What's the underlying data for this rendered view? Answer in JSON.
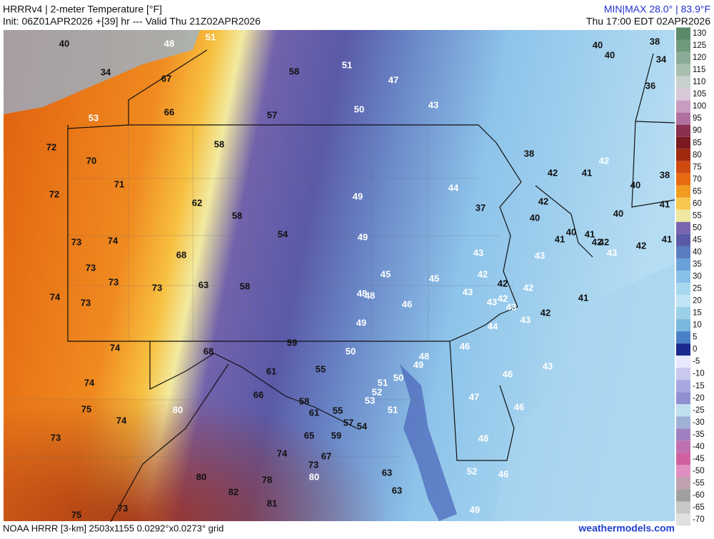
{
  "header": {
    "title": "HRRRv4 | 2-meter Temperature [°F]",
    "init": "Init: 06Z01APR2026 +[39] hr --- Valid Thu 21Z02APR2026",
    "minmax": "MIN|MAX 28.0° | 83.9°F",
    "local_time": "Thu 17:00 EDT 02APR2026"
  },
  "footer": {
    "grid": "NOAA HRRR [3-km] 2503x1155 0.0292°x0.0273° grid",
    "site": "weathermodels.com"
  },
  "colorbar": {
    "ticks": [
      130,
      125,
      120,
      115,
      110,
      105,
      100,
      95,
      90,
      85,
      80,
      75,
      70,
      65,
      60,
      55,
      50,
      45,
      40,
      35,
      30,
      25,
      20,
      15,
      10,
      5,
      0,
      -5,
      -10,
      -15,
      -20,
      -25,
      -30,
      -35,
      -40,
      -45,
      -50,
      -55,
      -60,
      -65,
      -70
    ],
    "colors": [
      "#5a8a6a",
      "#6f9a7c",
      "#8aab95",
      "#a8bfb0",
      "#c8d0cc",
      "#d8c8d8",
      "#c89cc0",
      "#b070a0",
      "#8a3050",
      "#7a1a20",
      "#a02a10",
      "#d04a10",
      "#e86a10",
      "#f39a20",
      "#f7c850",
      "#eee8a0",
      "#7a66b0",
      "#5a5aa8",
      "#5a7cc0",
      "#6aa0d8",
      "#88c0e8",
      "#a8d8f0",
      "#bfe4f4",
      "#9ccfe8",
      "#7ab8e0",
      "#4a80c8",
      "#1a2a90",
      "#e8e8ff",
      "#c8c8f0",
      "#a8a8e0",
      "#9090d0",
      "#c0e0f0",
      "#9fb0d8",
      "#a080c0",
      "#c070b0",
      "#d060a0",
      "#e090c0",
      "#c0a0b0",
      "#a0a0a0",
      "#c8c8c8",
      "#e0e0e0"
    ]
  },
  "temperature_labels": [
    40,
    48,
    51,
    34,
    67,
    66,
    53,
    58,
    51,
    47,
    50,
    43,
    57,
    40,
    40,
    38,
    34,
    36,
    72,
    70,
    58,
    38,
    42,
    42,
    41,
    38,
    72,
    71,
    49,
    44,
    40,
    62,
    37,
    42,
    41,
    58,
    40,
    40,
    54,
    49,
    40,
    41,
    41,
    42,
    42,
    43,
    42,
    41,
    73,
    74,
    68,
    43,
    43,
    73,
    73,
    73,
    63,
    58,
    45,
    45,
    42,
    42,
    42,
    48,
    48,
    43,
    42,
    43,
    43,
    41,
    74,
    73,
    46,
    42,
    43,
    49,
    44,
    74,
    68,
    59,
    50,
    46,
    48,
    49,
    61,
    55,
    51,
    50,
    46,
    43,
    74,
    52,
    66,
    58,
    53,
    47,
    75,
    80,
    61,
    55,
    51,
    46,
    74,
    57,
    54,
    73,
    65,
    59,
    48,
    74,
    67,
    73,
    52,
    46,
    63,
    80,
    80,
    78,
    63,
    82,
    81,
    73,
    49,
    75
  ]
}
